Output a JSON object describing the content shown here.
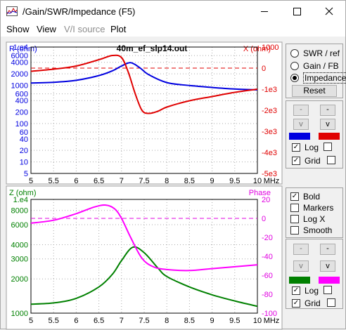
{
  "window": {
    "title": "/Gain/SWR/Impedance (F5)",
    "controls": {
      "minimize": "—",
      "maximize": "☐",
      "close": "✕"
    }
  },
  "menu": [
    {
      "label": "Show",
      "enabled": true
    },
    {
      "label": "View",
      "enabled": true
    },
    {
      "label": "V/I source",
      "enabled": false
    },
    {
      "label": "Plot",
      "enabled": true
    }
  ],
  "colors": {
    "r_series": "#0000e0",
    "x_series": "#e00000",
    "z_series": "#008000",
    "phase_series": "#ff00ff"
  },
  "mode_panel": {
    "options": [
      "SWR / ref",
      "Gain / FB",
      "Impedance"
    ],
    "selected": "Impedance",
    "reset_label": "Reset"
  },
  "top_controls": {
    "up_label": "-",
    "down_label": "v",
    "log_label": "Log",
    "log_checked": true,
    "grid_label": "Grid",
    "grid_checked": true
  },
  "options_panel": {
    "bold_label": "Bold",
    "bold_checked": true,
    "markers_label": "Markers",
    "markers_checked": false,
    "logx_label": "Log X",
    "logx_checked": false,
    "smooth_label": "Smooth",
    "smooth_checked": false
  },
  "bottom_controls": {
    "up_label": "-",
    "down_label": "v",
    "log_label": "Log",
    "log_checked": true,
    "grid_label": "Grid",
    "grid_checked": true
  },
  "chart_data": [
    {
      "type": "line",
      "title": "40m_ef_slp14.out",
      "left_axis_label": "R (ohm)",
      "right_axis_label": "X (ohm)",
      "xlim": [
        5,
        10
      ],
      "x_ticks": [
        "5",
        "5.5",
        "6",
        "6.5",
        "7",
        "7.5",
        "8",
        "8.5",
        "9",
        "9.5",
        "10"
      ],
      "x_unit": "MHz",
      "left_ticks": [
        "1.e4",
        "6000",
        "4000",
        "2000",
        "1000",
        "600",
        "400",
        "200",
        "100",
        "60",
        "40",
        "20",
        "10",
        "5"
      ],
      "right_ticks": [
        "1000",
        "0",
        "-1e3",
        "-2e3",
        "-3e3",
        "-4e3",
        "-5e3"
      ],
      "ylim_left_log": [
        5,
        10000
      ],
      "ylim_right": [
        -5000,
        1000
      ],
      "series": [
        {
          "name": "R",
          "axis": "left",
          "x": [
            5,
            5.5,
            6,
            6.5,
            6.8,
            7.0,
            7.2,
            7.4,
            7.6,
            8,
            8.5,
            9,
            9.5,
            10
          ],
          "y": [
            1150,
            1200,
            1350,
            1800,
            2400,
            3200,
            3900,
            2900,
            1900,
            1180,
            990,
            880,
            800,
            760
          ]
        },
        {
          "name": "X",
          "axis": "right",
          "x": [
            5,
            5.5,
            6,
            6.5,
            6.8,
            7.0,
            7.15,
            7.3,
            7.45,
            7.6,
            7.8,
            8,
            8.5,
            9,
            9.5,
            10
          ],
          "y": [
            -150,
            -50,
            100,
            400,
            600,
            500,
            -200,
            -1200,
            -2000,
            -2150,
            -2050,
            -1850,
            -1550,
            -1350,
            -1150,
            -1000
          ]
        }
      ],
      "reference_lines": [
        {
          "axis": "right",
          "y": 0
        }
      ]
    },
    {
      "type": "line",
      "left_axis_label": "Z (ohm)",
      "right_axis_label": "Phase",
      "xlim": [
        5,
        10
      ],
      "x_ticks": [
        "5",
        "5.5",
        "6",
        "6.5",
        "7",
        "7.5",
        "8",
        "8.5",
        "9",
        "9.5",
        "10"
      ],
      "x_unit": "MHz",
      "left_ticks": [
        "1.e4",
        "8000",
        "6000",
        "4000",
        "3000",
        "2000",
        "1000"
      ],
      "right_ticks": [
        "20",
        "0",
        "-20",
        "-40",
        "-60",
        "-80",
        "-100"
      ],
      "ylim_left_log": [
        1000,
        10000
      ],
      "ylim_right": [
        -100,
        20
      ],
      "series": [
        {
          "name": "Z",
          "axis": "left",
          "x": [
            5,
            5.5,
            6,
            6.5,
            6.8,
            7.0,
            7.25,
            7.5,
            7.8,
            8,
            8.5,
            9,
            9.5,
            10
          ],
          "y": [
            1200,
            1230,
            1350,
            1700,
            2200,
            2900,
            3800,
            3400,
            2500,
            2100,
            1700,
            1450,
            1280,
            1150
          ]
        },
        {
          "name": "Phase",
          "axis": "right",
          "x": [
            5,
            5.5,
            6,
            6.4,
            6.65,
            6.85,
            7.0,
            7.2,
            7.45,
            7.7,
            8,
            8.5,
            9,
            9.5,
            10
          ],
          "y": [
            -5,
            -2,
            5,
            12,
            14,
            10,
            0,
            -20,
            -42,
            -51,
            -54,
            -55,
            -53,
            -51,
            -49
          ]
        }
      ],
      "reference_lines": [
        {
          "axis": "right",
          "y": 0
        }
      ]
    }
  ]
}
